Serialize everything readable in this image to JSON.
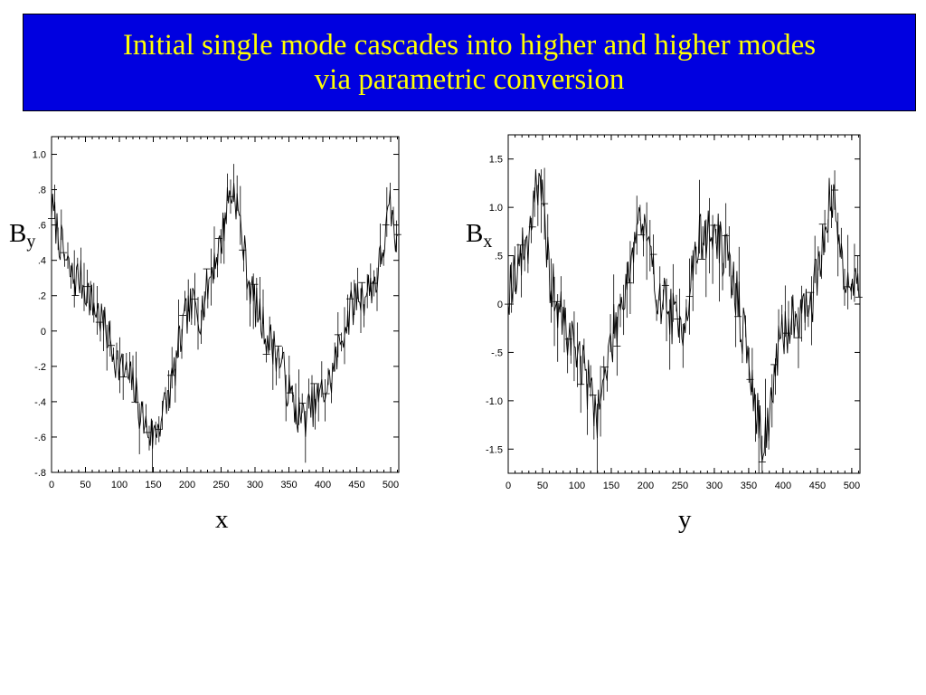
{
  "title": {
    "line1": "Initial single mode cascades into higher and higher modes",
    "line2": "via parametric conversion"
  },
  "chart_data": [
    {
      "type": "line",
      "xlabel": "x",
      "ylabel_base": "B",
      "ylabel_sub": "y",
      "xlim": [
        0,
        512
      ],
      "ylim": [
        -0.8,
        1.1
      ],
      "xticks": [
        0,
        50,
        100,
        150,
        200,
        250,
        300,
        350,
        400,
        450,
        500
      ],
      "xtick_labels": [
        "0",
        "50",
        "100",
        "150",
        "200",
        "250",
        "300",
        "350",
        "400",
        "450",
        "500"
      ],
      "yticks": [
        1.0,
        0.8,
        0.6,
        0.4,
        0.2,
        0,
        -0.2,
        -0.4,
        -0.6,
        -0.8
      ],
      "ytick_labels": [
        "1.0",
        ".8",
        ".6",
        ".4",
        ".2",
        "0",
        "-.2",
        "-.4",
        "-.6",
        "-.8"
      ],
      "grid": false,
      "series": [
        {
          "x": [
            0,
            10,
            20,
            30,
            40,
            50,
            60,
            70,
            80,
            90,
            100,
            110,
            120,
            130,
            140,
            150,
            160,
            170,
            180,
            190,
            200,
            210,
            220,
            230,
            240,
            250,
            260,
            270,
            280,
            290,
            300,
            310,
            320,
            330,
            340,
            350,
            360,
            370,
            380,
            390,
            400,
            410,
            420,
            430,
            440,
            450,
            460,
            470,
            480,
            490,
            500,
            512
          ],
          "y": [
            0.7,
            0.55,
            0.4,
            0.3,
            0.3,
            0.25,
            0.15,
            0.1,
            0.0,
            -0.1,
            -0.2,
            -0.25,
            -0.3,
            -0.45,
            -0.55,
            -0.6,
            -0.5,
            -0.4,
            -0.25,
            -0.05,
            0.1,
            0.15,
            0.1,
            0.25,
            0.4,
            0.5,
            0.75,
            0.8,
            0.55,
            0.3,
            0.15,
            0.05,
            -0.05,
            -0.1,
            -0.2,
            -0.35,
            -0.45,
            -0.5,
            -0.45,
            -0.4,
            -0.35,
            -0.3,
            -0.15,
            0.0,
            0.1,
            0.2,
            0.2,
            0.25,
            0.3,
            0.5,
            0.7,
            0.4
          ]
        }
      ]
    },
    {
      "type": "line",
      "xlabel": "y",
      "ylabel_base": "B",
      "ylabel_sub": "x",
      "xlim": [
        0,
        512
      ],
      "ylim": [
        -1.75,
        1.75
      ],
      "xticks": [
        0,
        50,
        100,
        150,
        200,
        250,
        300,
        350,
        400,
        450,
        500
      ],
      "xtick_labels": [
        "0",
        "50",
        "100",
        "150",
        "200",
        "250",
        "300",
        "350",
        "400",
        "450",
        "500"
      ],
      "yticks": [
        1.5,
        1.0,
        0.5,
        0,
        -0.5,
        -1.0,
        -1.5
      ],
      "ytick_labels": [
        "1.5",
        "1.0",
        ".5",
        "0",
        "-.5",
        "-1.0",
        "-1.5"
      ],
      "grid": false,
      "series": [
        {
          "x": [
            0,
            10,
            20,
            30,
            40,
            50,
            60,
            70,
            80,
            90,
            100,
            110,
            120,
            130,
            140,
            150,
            160,
            170,
            180,
            190,
            200,
            210,
            220,
            230,
            240,
            250,
            260,
            270,
            280,
            290,
            300,
            310,
            320,
            330,
            340,
            350,
            360,
            370,
            380,
            390,
            400,
            410,
            420,
            430,
            440,
            450,
            460,
            470,
            480,
            490,
            500,
            512
          ],
          "y": [
            0.15,
            0.35,
            0.5,
            0.7,
            1.3,
            1.0,
            0.3,
            0.0,
            -0.2,
            -0.35,
            -0.45,
            -0.7,
            -0.9,
            -1.1,
            -0.8,
            -0.4,
            -0.1,
            0.2,
            0.5,
            0.9,
            0.7,
            0.3,
            0.1,
            0.0,
            -0.15,
            -0.3,
            0.0,
            0.4,
            0.7,
            0.7,
            0.75,
            0.6,
            0.4,
            0.2,
            -0.2,
            -0.6,
            -1.1,
            -1.4,
            -1.2,
            -0.6,
            -0.35,
            -0.2,
            -0.1,
            -0.05,
            0.0,
            0.3,
            0.8,
            1.1,
            0.75,
            0.35,
            0.2,
            0.15
          ]
        }
      ]
    }
  ]
}
